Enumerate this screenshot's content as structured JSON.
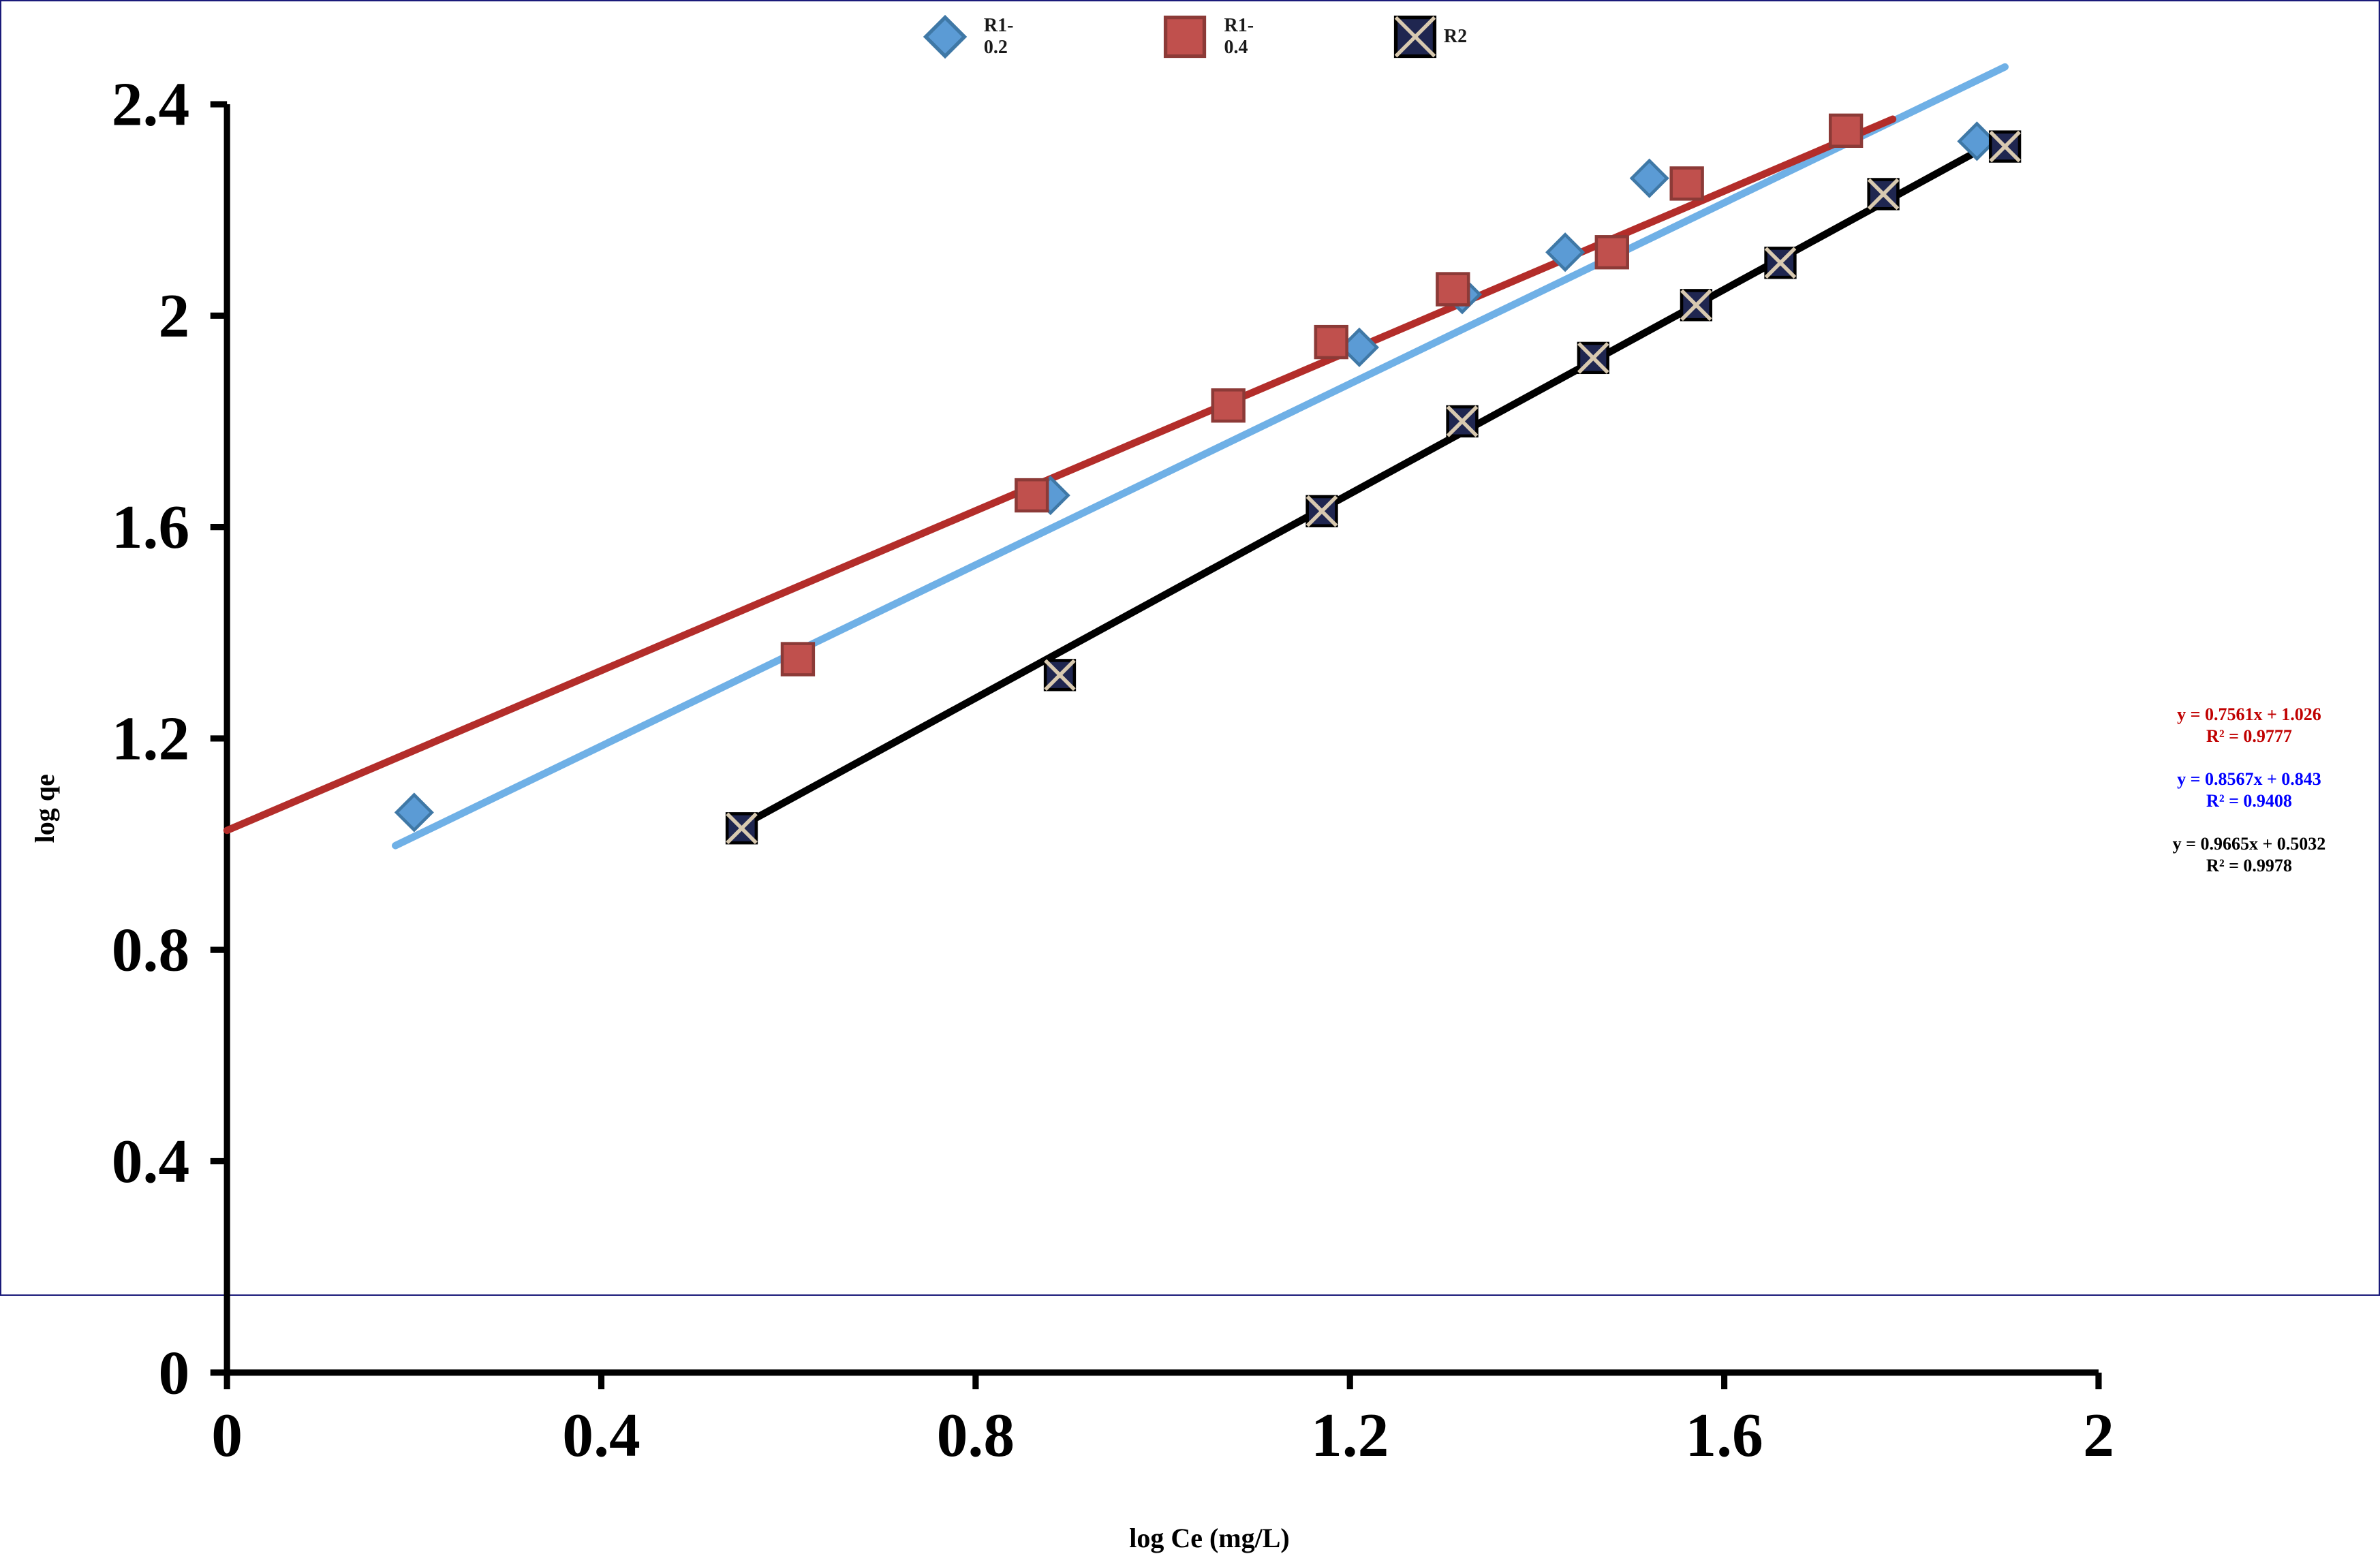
{
  "chart": {
    "type": "scatter-with-trendlines",
    "background_color": "#ffffff",
    "border_color": "#1a1a7a",
    "axis_color": "#000000",
    "axis_width": 3,
    "tick_length_out": 8,
    "ticklabel_fontsize": 30,
    "axislabel_fontsize": 40,
    "legend_fontsize": 28,
    "annotation_fontsize": 26,
    "font_family": "Times New Roman",
    "xlim": [
      0,
      2
    ],
    "ylim": [
      0,
      2.4
    ],
    "xticks": [
      0,
      0.4,
      0.8,
      1.2,
      1.6,
      2
    ],
    "yticks": [
      0,
      0.4,
      0.8,
      1.2,
      1.6,
      2,
      2.4
    ],
    "xlabel": "log Ce (mg/L)",
    "ylabel": "log qe",
    "grid": false,
    "legend": {
      "position": "top",
      "items": [
        {
          "label": "R1-0.2",
          "marker": "diamond",
          "color": "#5b9bd5"
        },
        {
          "label": "R1-0.4",
          "marker": "square",
          "color": "#c0504d"
        },
        {
          "label": "R2",
          "marker": "square-x",
          "color": "#000000",
          "fill": "#1f2650"
        }
      ]
    },
    "series": [
      {
        "name": "R1-0.2",
        "marker": "diamond",
        "marker_size": 11,
        "marker_color": "#5b9bd5",
        "marker_border": "#3f78a6",
        "line_color": "#6fb0e6",
        "line_width": 3.5,
        "trend": {
          "slope": 0.8567,
          "intercept": 0.843,
          "r2": 0.9408,
          "x0": 0.18,
          "x1": 1.9
        },
        "x": [
          0.2,
          0.88,
          1.21,
          1.32,
          1.43,
          1.52,
          1.87
        ],
        "y": [
          1.06,
          1.66,
          1.94,
          2.04,
          2.12,
          2.26,
          2.33
        ]
      },
      {
        "name": "R1-0.4",
        "marker": "square",
        "marker_size": 15,
        "marker_color": "#c0504d",
        "marker_border": "#8c3a37",
        "line_color": "#b32d2a",
        "line_width": 3.5,
        "trend": {
          "slope": 0.7561,
          "intercept": 1.026,
          "r2": 0.9777,
          "x0": 0.0,
          "x1": 1.78
        },
        "x": [
          0.61,
          0.86,
          1.07,
          1.18,
          1.31,
          1.48,
          1.56,
          1.73
        ],
        "y": [
          1.35,
          1.66,
          1.83,
          1.95,
          2.05,
          2.12,
          2.25,
          2.35
        ]
      },
      {
        "name": "R2",
        "marker": "square-x",
        "marker_size": 14,
        "marker_color": "#1f2650",
        "marker_border": "#000000",
        "x_stroke": "#d8c9b0",
        "line_color": "#000000",
        "line_width": 3.5,
        "trend": {
          "slope": 0.9665,
          "intercept": 0.5032,
          "r2": 0.9978,
          "x0": 0.54,
          "x1": 1.9
        },
        "x": [
          0.55,
          0.89,
          1.17,
          1.32,
          1.46,
          1.57,
          1.66,
          1.77,
          1.9
        ],
        "y": [
          1.03,
          1.32,
          1.63,
          1.8,
          1.92,
          2.02,
          2.1,
          2.23,
          2.32
        ]
      }
    ],
    "annotations": [
      {
        "eq": "y = 0.7561x + 1.026",
        "r2": "R² = 0.9777",
        "color": "#c00000"
      },
      {
        "eq": "y = 0.8567x + 0.843",
        "r2": "R² = 0.9408",
        "color": "#0000ff"
      },
      {
        "eq": "y = 0.9665x + 0.5032",
        "r2": "R² = 0.9978",
        "color": "#000000"
      }
    ]
  }
}
